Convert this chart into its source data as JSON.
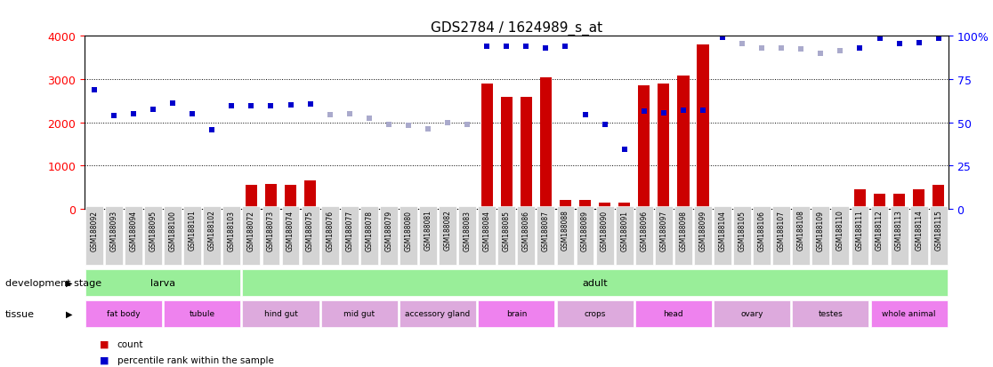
{
  "title": "GDS2784 / 1624989_s_at",
  "samples": [
    "GSM188092",
    "GSM188093",
    "GSM188094",
    "GSM188095",
    "GSM188100",
    "GSM188101",
    "GSM188102",
    "GSM188103",
    "GSM188072",
    "GSM188073",
    "GSM188074",
    "GSM188075",
    "GSM188076",
    "GSM188077",
    "GSM188078",
    "GSM188079",
    "GSM188080",
    "GSM188081",
    "GSM188082",
    "GSM188083",
    "GSM188084",
    "GSM188085",
    "GSM188086",
    "GSM188087",
    "GSM188088",
    "GSM188089",
    "GSM188090",
    "GSM188091",
    "GSM188096",
    "GSM188097",
    "GSM188098",
    "GSM188099",
    "GSM188104",
    "GSM188105",
    "GSM188106",
    "GSM188107",
    "GSM188108",
    "GSM188109",
    "GSM188110",
    "GSM188111",
    "GSM188112",
    "GSM188113",
    "GSM188114",
    "GSM188115"
  ],
  "count_values": [
    30,
    30,
    30,
    50,
    30,
    30,
    30,
    30,
    550,
    580,
    550,
    650,
    30,
    30,
    30,
    30,
    30,
    30,
    30,
    30,
    2900,
    2600,
    2600,
    3050,
    200,
    200,
    150,
    150,
    2850,
    2900,
    3080,
    3800,
    30,
    30,
    30,
    30,
    30,
    30,
    30,
    450,
    350,
    350,
    450,
    550
  ],
  "rank_values": [
    2750,
    2150,
    2200,
    2300,
    2450,
    2200,
    1820,
    2380,
    2380,
    2380,
    2400,
    2420,
    2180,
    2200,
    2100,
    1960,
    1940,
    1850,
    2000,
    1950,
    3760,
    3760,
    3760,
    3720,
    3760,
    2170,
    1960,
    1380,
    2270,
    2210,
    2290,
    2290,
    3960,
    3830,
    3720,
    3720,
    3710,
    3600,
    3660,
    3720,
    3950,
    3830,
    3850,
    3950
  ],
  "absent_mask": [
    false,
    false,
    false,
    false,
    false,
    false,
    false,
    false,
    false,
    false,
    false,
    false,
    true,
    true,
    true,
    true,
    true,
    true,
    true,
    true,
    false,
    false,
    false,
    false,
    false,
    false,
    false,
    false,
    false,
    false,
    false,
    false,
    false,
    true,
    true,
    true,
    true,
    true,
    true,
    false,
    false,
    false,
    false,
    false
  ],
  "development_stages": [
    {
      "label": "larva",
      "start": 0,
      "end": 7
    },
    {
      "label": "adult",
      "start": 8,
      "end": 43
    }
  ],
  "tissues": [
    {
      "label": "fat body",
      "start": 0,
      "end": 3,
      "color": "#ee82ee"
    },
    {
      "label": "tubule",
      "start": 4,
      "end": 7,
      "color": "#ee82ee"
    },
    {
      "label": "hind gut",
      "start": 8,
      "end": 11,
      "color": "#ddaadd"
    },
    {
      "label": "mid gut",
      "start": 12,
      "end": 15,
      "color": "#ddaadd"
    },
    {
      "label": "accessory gland",
      "start": 16,
      "end": 19,
      "color": "#ddaadd"
    },
    {
      "label": "brain",
      "start": 20,
      "end": 23,
      "color": "#ee82ee"
    },
    {
      "label": "crops",
      "start": 24,
      "end": 27,
      "color": "#ddaadd"
    },
    {
      "label": "head",
      "start": 28,
      "end": 31,
      "color": "#ee82ee"
    },
    {
      "label": "ovary",
      "start": 32,
      "end": 35,
      "color": "#ddaadd"
    },
    {
      "label": "testes",
      "start": 36,
      "end": 39,
      "color": "#ddaadd"
    },
    {
      "label": "whole animal",
      "start": 40,
      "end": 43,
      "color": "#ee82ee"
    }
  ],
  "ylim_left": [
    0,
    4000
  ],
  "ylim_right": [
    0,
    100
  ],
  "yticks_left": [
    0,
    1000,
    2000,
    3000,
    4000
  ],
  "yticks_right": [
    0,
    25,
    50,
    75,
    100
  ],
  "bar_color_present": "#cc0000",
  "bar_color_absent": "#ff9999",
  "dot_color_present": "#0000cc",
  "dot_color_absent": "#aaaacc",
  "dev_stage_color": "#99ee99",
  "bg_color": "#ffffff",
  "label_row1": "development stage",
  "label_row2": "tissue"
}
